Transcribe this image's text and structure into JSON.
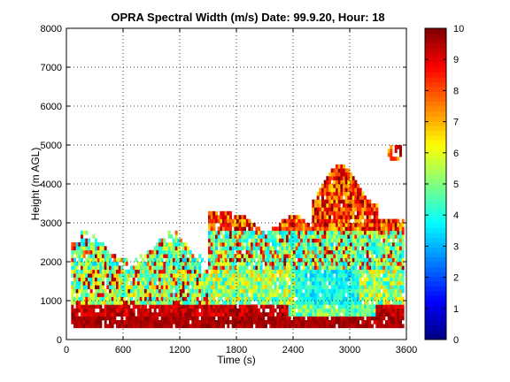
{
  "chart_data": {
    "type": "heatmap",
    "title": "OPRA Spectral Width (m/s)  Date: 99.9.20, Hour: 18",
    "xlabel": "Time (s)",
    "ylabel": "Height (m AGL)",
    "xlim": [
      0,
      3600
    ],
    "ylim": [
      0,
      8000
    ],
    "x_ticks": [
      "0",
      "600",
      "1200",
      "1800",
      "2400",
      "3000",
      "3600"
    ],
    "y_ticks": [
      "0",
      "1000",
      "2000",
      "3000",
      "4000",
      "5000",
      "6000",
      "7000",
      "8000"
    ],
    "grid": true,
    "colorbar": {
      "range": [
        0,
        10
      ],
      "ticks": [
        "0",
        "1",
        "2",
        "3",
        "4",
        "5",
        "6",
        "7",
        "8",
        "9",
        "10"
      ],
      "colormap": "jet"
    },
    "regions": [
      {
        "t": [
          60,
          3580
        ],
        "h": [
          300,
          900
        ],
        "value_range": [
          8.5,
          10
        ],
        "desc": "low-level high width band"
      },
      {
        "t": [
          60,
          1500
        ],
        "h": [
          900,
          1800
        ],
        "value_range": [
          3.5,
          6.5
        ]
      },
      {
        "t": [
          1500,
          3580
        ],
        "h": [
          900,
          2800
        ],
        "value_range": [
          3,
          6
        ]
      },
      {
        "t": [
          2400,
          3100
        ],
        "h": [
          300,
          1800
        ],
        "value_range": [
          3,
          4.5
        ]
      },
      {
        "t": [
          2650,
          3300
        ],
        "h": [
          2800,
          4600
        ],
        "value_range": [
          7,
          10
        ]
      },
      {
        "t": [
          3400,
          3560
        ],
        "h": [
          4600,
          5000
        ],
        "value_range": [
          9,
          10
        ]
      }
    ]
  }
}
